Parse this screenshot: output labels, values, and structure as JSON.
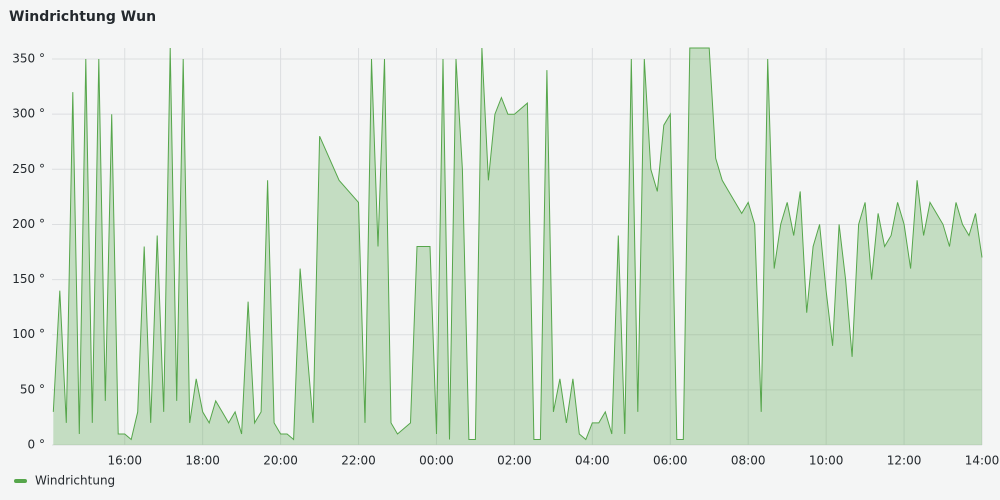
{
  "chart_data": {
    "type": "area",
    "title": "Windrichtung Wun",
    "series": [
      {
        "name": "Windrichtung",
        "color": "#56a64b",
        "x": [
          "14:10",
          "14:20",
          "14:30",
          "14:40",
          "14:50",
          "15:00",
          "15:10",
          "15:20",
          "15:30",
          "15:40",
          "15:50",
          "16:00",
          "16:10",
          "16:20",
          "16:30",
          "16:40",
          "16:50",
          "17:00",
          "17:10",
          "17:20",
          "17:30",
          "17:40",
          "17:50",
          "18:00",
          "18:10",
          "18:20",
          "18:30",
          "18:40",
          "18:50",
          "19:00",
          "19:10",
          "19:20",
          "19:30",
          "19:40",
          "19:50",
          "20:00",
          "20:10",
          "20:20",
          "20:30",
          "20:50",
          "21:00",
          "21:30",
          "22:00",
          "22:10",
          "22:20",
          "22:30",
          "22:40",
          "22:50",
          "23:00",
          "23:20",
          "23:30",
          "23:50",
          "00:00",
          "00:10",
          "00:20",
          "00:30",
          "00:40",
          "00:50",
          "01:00",
          "01:10",
          "01:20",
          "01:30",
          "01:40",
          "01:50",
          "02:00",
          "02:20",
          "02:30",
          "02:40",
          "02:50",
          "03:00",
          "03:10",
          "03:20",
          "03:30",
          "03:40",
          "03:50",
          "04:00",
          "04:10",
          "04:20",
          "04:30",
          "04:40",
          "04:50",
          "05:00",
          "05:10",
          "05:20",
          "05:30",
          "05:40",
          "05:50",
          "06:00",
          "06:10",
          "06:20",
          "06:30",
          "06:40",
          "06:50",
          "07:00",
          "07:10",
          "07:20",
          "07:30",
          "07:40",
          "07:50",
          "08:00",
          "08:10",
          "08:20",
          "08:30",
          "08:40",
          "08:50",
          "09:00",
          "09:10",
          "09:20",
          "09:30",
          "09:40",
          "09:50",
          "10:00",
          "10:10",
          "10:20",
          "10:30",
          "10:40",
          "10:50",
          "11:00",
          "11:10",
          "11:20",
          "11:30",
          "11:40",
          "11:50",
          "12:00",
          "12:10",
          "12:20",
          "12:30",
          "12:40",
          "12:50",
          "13:00",
          "13:10",
          "13:20",
          "13:30",
          "13:40",
          "13:50",
          "14:00"
        ],
        "values": [
          30,
          140,
          20,
          320,
          10,
          350,
          20,
          350,
          40,
          300,
          10,
          10,
          5,
          30,
          180,
          20,
          190,
          30,
          360,
          40,
          350,
          20,
          60,
          30,
          20,
          40,
          30,
          20,
          30,
          10,
          130,
          20,
          30,
          240,
          20,
          10,
          10,
          5,
          160,
          20,
          280,
          240,
          220,
          20,
          350,
          180,
          350,
          20,
          10,
          20,
          180,
          180,
          10,
          350,
          5,
          350,
          250,
          5,
          5,
          360,
          240,
          300,
          315,
          300,
          300,
          310,
          5,
          5,
          340,
          30,
          60,
          20,
          60,
          10,
          5,
          20,
          20,
          30,
          10,
          190,
          10,
          350,
          30,
          350,
          250,
          230,
          290,
          300,
          5,
          5,
          360,
          360,
          360,
          360,
          260,
          240,
          230,
          220,
          210,
          220,
          200,
          30,
          350,
          160,
          200,
          220,
          190,
          230,
          120,
          180,
          200,
          140,
          90,
          200,
          150,
          80,
          200,
          220,
          150,
          210,
          180,
          190,
          220,
          200,
          160,
          240,
          190,
          220,
          210,
          200,
          180,
          220,
          200,
          190,
          210,
          170
        ]
      }
    ],
    "xlim": [
      "14:08",
      "14:00"
    ],
    "xticks": [
      "16:00",
      "18:00",
      "20:00",
      "22:00",
      "00:00",
      "02:00",
      "04:00",
      "06:00",
      "08:00",
      "10:00",
      "12:00",
      "14:00"
    ],
    "ylim": [
      0,
      360
    ],
    "yticks": [
      {
        "value": 0,
        "label": "0 °"
      },
      {
        "value": 50,
        "label": "50 °"
      },
      {
        "value": 100,
        "label": "100 °"
      },
      {
        "value": 150,
        "label": "150 °"
      },
      {
        "value": 200,
        "label": "200 °"
      },
      {
        "value": 250,
        "label": "250 °"
      },
      {
        "value": 300,
        "label": "300 °"
      },
      {
        "value": 350,
        "label": "350 °"
      }
    ],
    "grid": true,
    "legend": "bottom-left"
  }
}
